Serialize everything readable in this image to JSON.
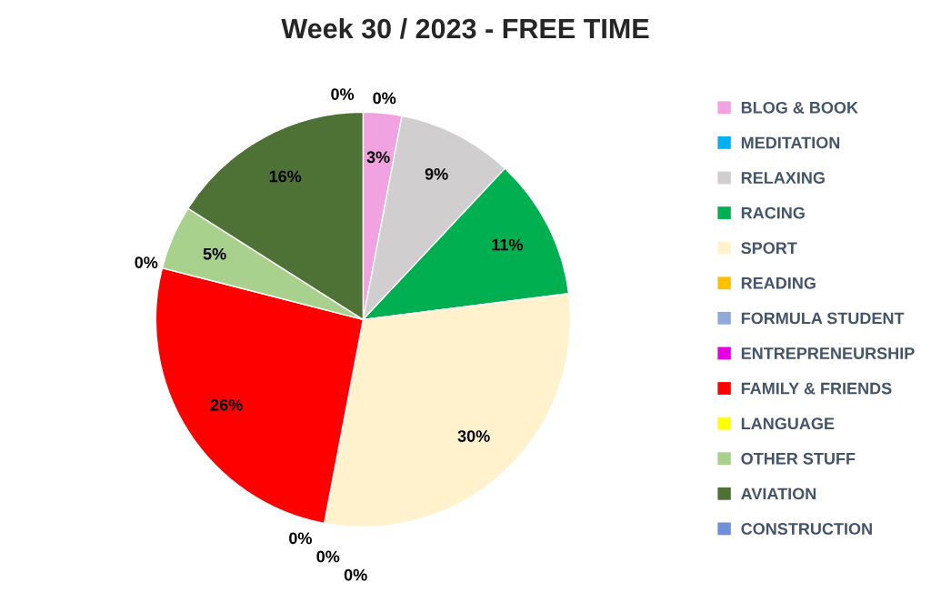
{
  "chart_data": {
    "type": "pie",
    "title": "Week 30 / 2023 - FREE TIME",
    "categories": [
      "BLOG & BOOK",
      "MEDITATION",
      "RELAXING",
      "RACING",
      "SPORT",
      "READING",
      "FORMULA STUDENT",
      "ENTREPRENEURSHIP",
      "FAMILY & FRIENDS",
      "LANGUAGE",
      "OTHER STUFF",
      "AVIATION",
      "CONSTRUCTION"
    ],
    "values": [
      3,
      0,
      9,
      11,
      30,
      0,
      0,
      0,
      26,
      0,
      5,
      16,
      0
    ],
    "value_labels": [
      "3%",
      "0%",
      "9%",
      "11%",
      "30%",
      "0%",
      "0%",
      "0%",
      "26%",
      "0%",
      "5%",
      "16%",
      "0%"
    ],
    "colors": [
      "#f0a3e0",
      "#00b0f0",
      "#d0cece",
      "#00b050",
      "#fff2cc",
      "#ffc000",
      "#8eaadb",
      "#e000e0",
      "#ff0000",
      "#ffff00",
      "#a9d18e",
      "#4e7235",
      "#6f8fd8"
    ],
    "legend": "right"
  }
}
